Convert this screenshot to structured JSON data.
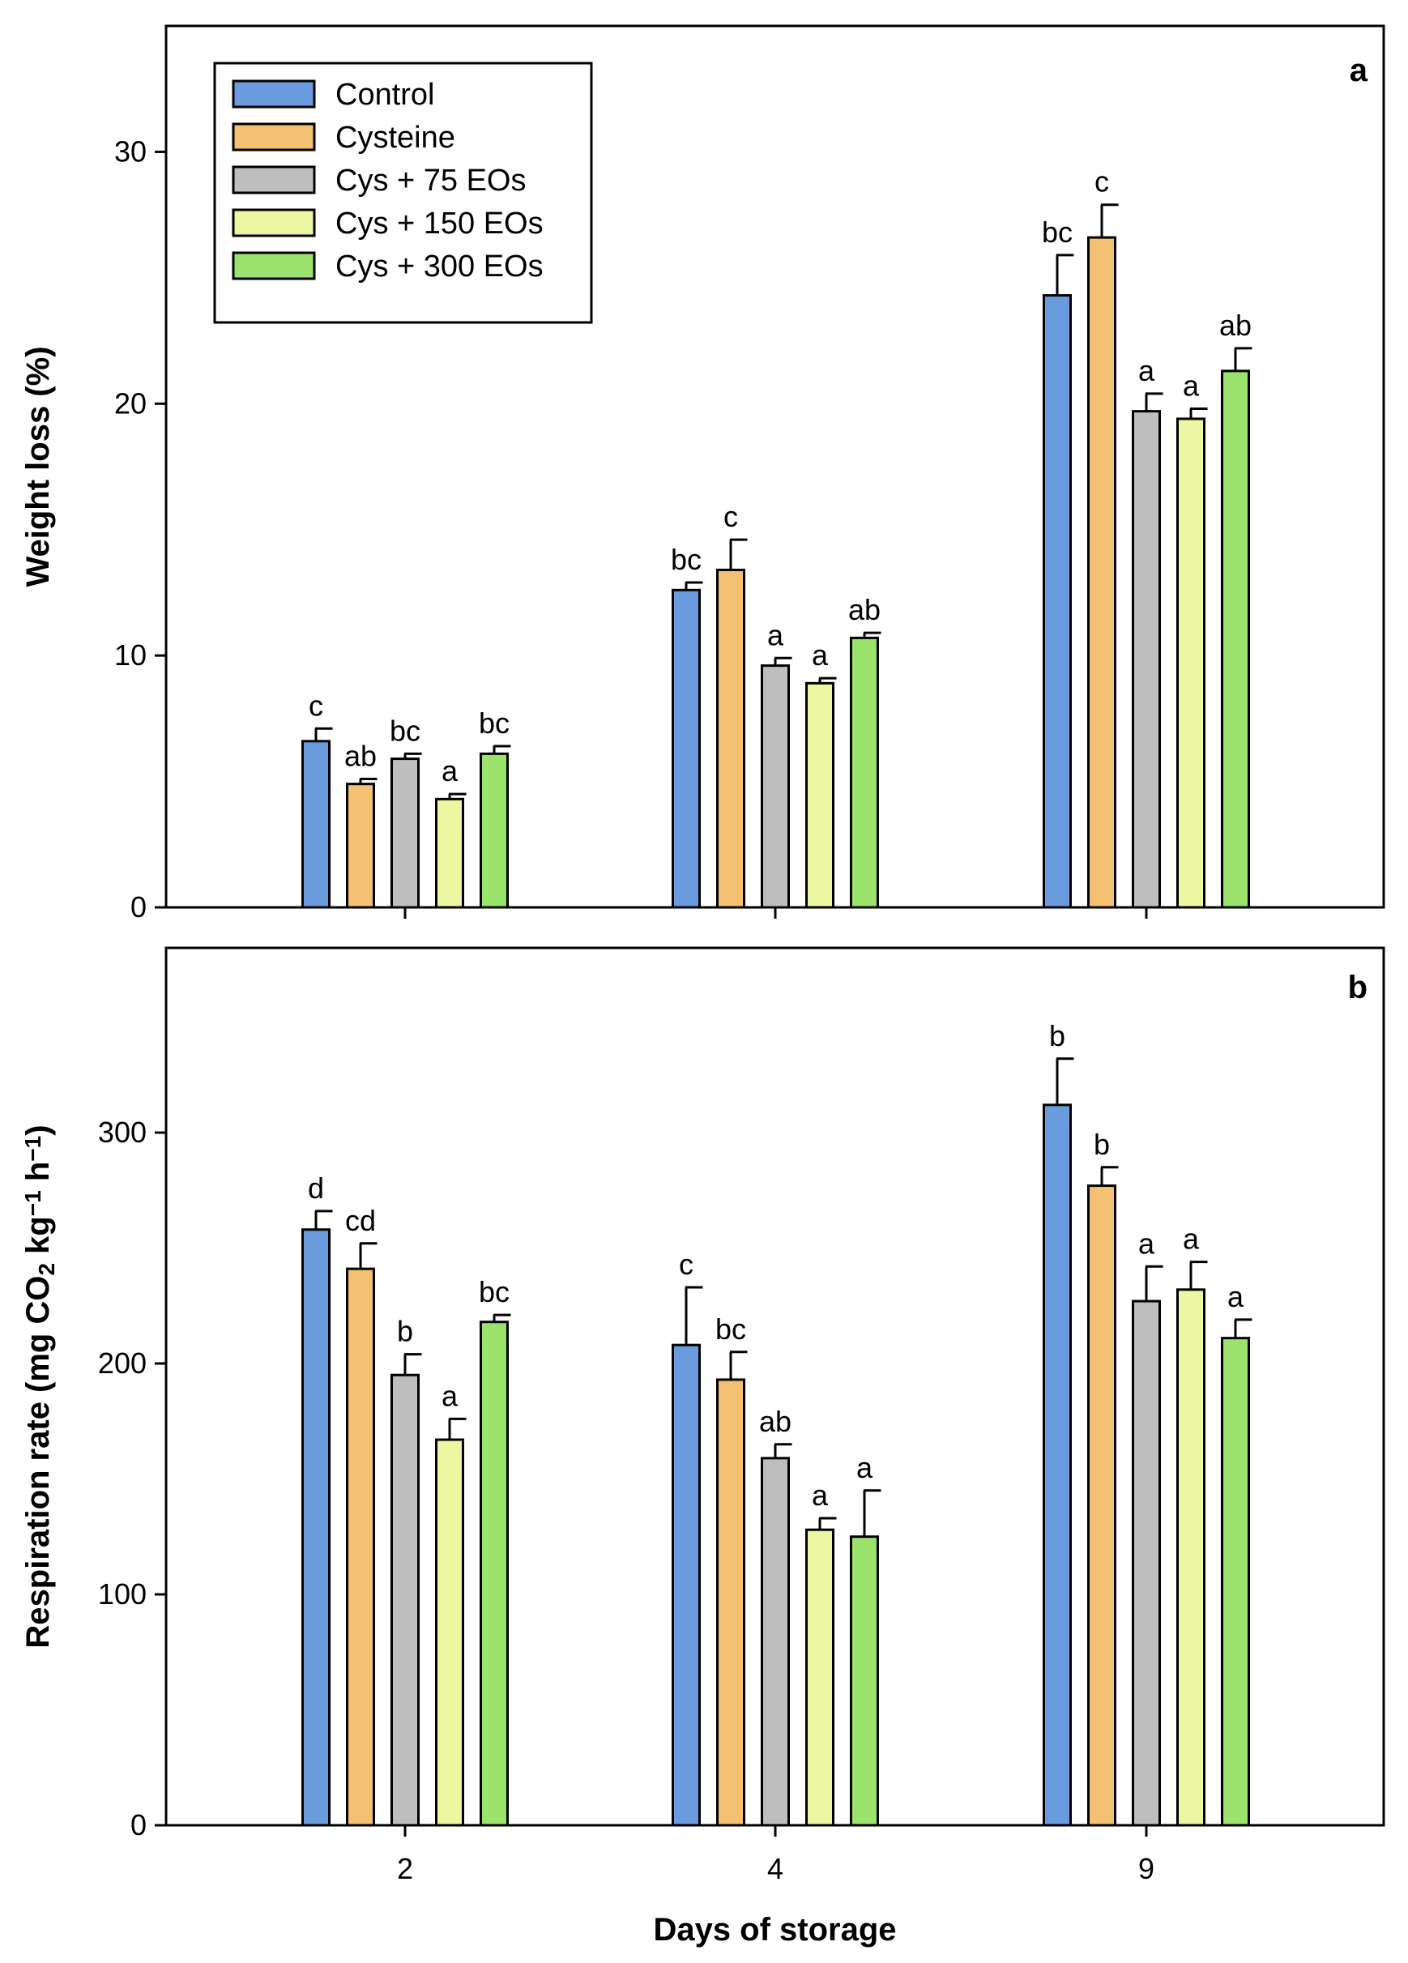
{
  "chart_data": [
    {
      "panel": "a",
      "type": "bar",
      "ylabel": "Weight loss (%)",
      "xlabel": "",
      "categories": [
        "2",
        "4",
        "9"
      ],
      "ylim": [
        0,
        35
      ],
      "yticks": [
        0,
        10,
        20,
        30
      ],
      "legend_position": "top-left",
      "series": [
        {
          "name": "Control",
          "color": "#6A9BDC",
          "values": [
            6.6,
            12.6,
            24.3
          ],
          "errors": [
            0.5,
            0.3,
            1.6
          ],
          "labels": [
            "c",
            "bc",
            "bc"
          ]
        },
        {
          "name": "Cysteine",
          "color": "#F4C072",
          "values": [
            4.9,
            13.4,
            26.6
          ],
          "errors": [
            0.2,
            1.2,
            1.3
          ],
          "labels": [
            "ab",
            "c",
            "c"
          ]
        },
        {
          "name": "Cys + 75 EOs",
          "color": "#BEBEBE",
          "values": [
            5.9,
            9.6,
            19.7
          ],
          "errors": [
            0.2,
            0.3,
            0.7
          ],
          "labels": [
            "bc",
            "a",
            "a"
          ]
        },
        {
          "name": "Cys + 150 EOs",
          "color": "#EDF7A1",
          "values": [
            4.3,
            8.9,
            19.4
          ],
          "errors": [
            0.2,
            0.2,
            0.4
          ],
          "labels": [
            "a",
            "a",
            "a"
          ]
        },
        {
          "name": "Cys + 300 EOs",
          "color": "#9BE36D",
          "values": [
            6.1,
            10.7,
            21.3
          ],
          "errors": [
            0.3,
            0.2,
            0.9
          ],
          "labels": [
            "bc",
            "ab",
            "ab"
          ]
        }
      ]
    },
    {
      "panel": "b",
      "type": "bar",
      "ylabel": "Respiration rate (mg CO2 kg−1 h−1)",
      "ylabel_parts": {
        "before": "Respiration rate (mg CO",
        "sub": "2",
        "middle": " kg",
        "sup1": "−1",
        "middle2": " h",
        "sup2": "−1",
        "after": ")"
      },
      "xlabel": "Days of storage",
      "categories": [
        "2",
        "4",
        "9"
      ],
      "ylim": [
        0,
        380
      ],
      "yticks": [
        0,
        100,
        200,
        300
      ],
      "series": [
        {
          "name": "Control",
          "color": "#6A9BDC",
          "values": [
            258,
            208,
            312
          ],
          "errors": [
            8,
            25,
            20
          ],
          "labels": [
            "d",
            "c",
            "b"
          ]
        },
        {
          "name": "Cysteine",
          "color": "#F4C072",
          "values": [
            241,
            193,
            277
          ],
          "errors": [
            11,
            12,
            8
          ],
          "labels": [
            "cd",
            "bc",
            "b"
          ]
        },
        {
          "name": "Cys + 75 EOs",
          "color": "#BEBEBE",
          "values": [
            195,
            159,
            227
          ],
          "errors": [
            9,
            6,
            15
          ],
          "labels": [
            "b",
            "ab",
            "a"
          ]
        },
        {
          "name": "Cys + 150 EOs",
          "color": "#EDF7A1",
          "values": [
            167,
            128,
            232
          ],
          "errors": [
            9,
            5,
            12
          ],
          "labels": [
            "a",
            "a",
            "a"
          ]
        },
        {
          "name": "Cys + 300 EOs",
          "color": "#9BE36D",
          "values": [
            218,
            125,
            211
          ],
          "errors": [
            3,
            20,
            8
          ],
          "labels": [
            "bc",
            "a",
            "a"
          ]
        }
      ]
    }
  ]
}
